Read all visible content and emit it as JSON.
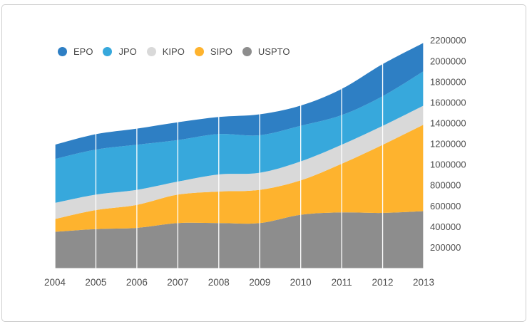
{
  "chart_data": {
    "type": "area",
    "stacked": true,
    "title": "",
    "xlabel": "",
    "ylabel": "",
    "categories": [
      "2004",
      "2005",
      "2006",
      "2007",
      "2008",
      "2009",
      "2010",
      "2011",
      "2012",
      "2013"
    ],
    "series": [
      {
        "name": "EPO",
        "color": "#2e7fc4",
        "values": [
          138000,
          149000,
          156000,
          172000,
          165000,
          202000,
          195000,
          253000,
          310000,
          275000
        ]
      },
      {
        "name": "JPO",
        "color": "#37a8dc",
        "values": [
          424000,
          435000,
          436000,
          401000,
          390000,
          363000,
          344000,
          286000,
          287000,
          332000
        ]
      },
      {
        "name": "KIPO",
        "color": "#d9d9d9",
        "values": [
          156000,
          149000,
          145000,
          126000,
          165000,
          165000,
          183000,
          184000,
          183000,
          184000
        ]
      },
      {
        "name": "SIPO",
        "color": "#feb32e",
        "values": [
          124000,
          184000,
          222000,
          275000,
          305000,
          321000,
          333000,
          470000,
          658000,
          836000
        ]
      },
      {
        "name": "USPTO",
        "color": "#8d8d8d",
        "values": [
          350000,
          377000,
          389000,
          435000,
          435000,
          435000,
          515000,
          538000,
          533000,
          550000
        ]
      }
    ],
    "stack_order_bottom_to_top": [
      "USPTO",
      "SIPO",
      "KIPO",
      "JPO",
      "EPO"
    ],
    "yticks": [
      200000,
      400000,
      600000,
      800000,
      1000000,
      1200000,
      1400000,
      1600000,
      1800000,
      2000000,
      2200000
    ],
    "ylim": [
      0,
      2300000
    ],
    "y_axis_side": "right",
    "grid": "vertical-white-lines-over-areas",
    "legend_position": "top-left"
  }
}
